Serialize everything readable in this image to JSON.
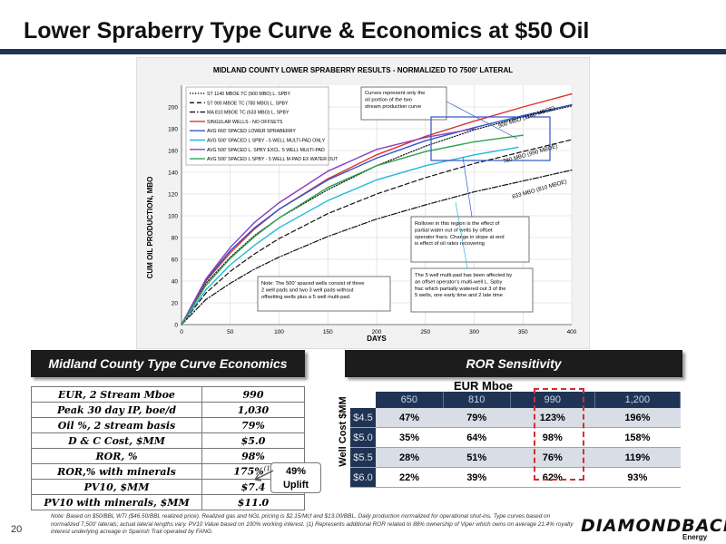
{
  "slide": {
    "title": "Lower Spraberry Type Curve & Economics at $50 Oil",
    "page_number": "20",
    "footnote": "Note: Based on $50/BBL WTI ($46.50/BBL realized price). Realized gas and NGL pricing is $2.15/Mcf and $13.00/BBL. Daily production normalized for operational shut-ins. Type curves based on normalized 7,500' laterals; actual lateral lengths vary. PV10 Value based on 100% working interest. (1) Represents additional ROR related to 88% ownership of Viper which owns on average 21.4% royalty interest underlying acreage in Spanish Trail operated by FANG.",
    "logo_text": "DIAMONDBACK",
    "logo_sub": "Energy"
  },
  "chart_data": {
    "type": "line",
    "title": "MIDLAND COUNTY LOWER SPRABERRY RESULTS - NORMALIZED TO 7500' LATERAL",
    "xlabel": "DAYS",
    "ylabel": "CUM OIL PRODUCTION, MBO",
    "xlim": [
      0,
      400
    ],
    "ylim": [
      0,
      220
    ],
    "x_ticks": [
      0,
      50,
      100,
      150,
      200,
      250,
      300,
      350,
      400
    ],
    "y_ticks": [
      0,
      20,
      40,
      60,
      80,
      100,
      120,
      140,
      160,
      180,
      200
    ],
    "grid": true,
    "legend_position": "top-left",
    "series": [
      {
        "name": "ST 1140 MBOE TC (900 MBO) L. SPBY",
        "color": "#111111",
        "style": "dotted",
        "x": [
          0,
          25,
          50,
          75,
          100,
          150,
          200,
          250,
          300,
          350,
          400
        ],
        "y": [
          0,
          38,
          62,
          82,
          98,
          124,
          146,
          164,
          179,
          191,
          201
        ]
      },
      {
        "name": "ST 990 MBOE TC (780 MBO) L. SPBY",
        "color": "#111111",
        "style": "dashed",
        "x": [
          0,
          25,
          50,
          75,
          100,
          150,
          200,
          250,
          300,
          350,
          400
        ],
        "y": [
          0,
          29,
          49,
          65,
          79,
          102,
          120,
          135,
          148,
          159,
          170
        ]
      },
      {
        "name": "MA 810 MBOE TC (633 MBO) L. SPBY",
        "color": "#111111",
        "style": "dashdot",
        "x": [
          0,
          25,
          50,
          75,
          100,
          150,
          200,
          250,
          300,
          350,
          400
        ],
        "y": [
          0,
          23,
          38,
          51,
          62,
          81,
          97,
          110,
          122,
          132,
          142
        ]
      },
      {
        "name": "SINGULAR WELLS - NO OFFSETS",
        "color": "#e0302b",
        "style": "solid",
        "x": [
          0,
          25,
          50,
          75,
          100,
          150,
          200,
          250,
          300,
          350,
          400
        ],
        "y": [
          0,
          40,
          66,
          88,
          106,
          134,
          156,
          173,
          187,
          200,
          212
        ]
      },
      {
        "name": "AVG 660' SPACED LOWER SPRABERRY",
        "color": "#2f55c7",
        "style": "solid",
        "x": [
          0,
          25,
          50,
          75,
          100,
          150,
          200,
          250,
          300,
          350,
          400
        ],
        "y": [
          0,
          41,
          68,
          89,
          106,
          133,
          153,
          169,
          181,
          192,
          202
        ]
      },
      {
        "name": "AVG 500' SPACED L SPBY - 5 WELL MULTI-PAD ONLY",
        "color": "#22b8d8",
        "style": "solid",
        "x": [
          0,
          25,
          50,
          75,
          100,
          150,
          200,
          250,
          300,
          345
        ],
        "y": [
          0,
          32,
          55,
          73,
          89,
          114,
          133,
          146,
          156,
          163
        ]
      },
      {
        "name": "AVG 500' SPACED L. SPBY EXCL. 5 WELL MULTI-PAD",
        "color": "#8a3fc2",
        "style": "solid",
        "x": [
          0,
          25,
          50,
          75,
          100,
          150,
          200,
          250,
          300
        ],
        "y": [
          0,
          42,
          71,
          94,
          112,
          141,
          161,
          172,
          180
        ]
      },
      {
        "name": "AVG 500' SPACED L SPBY - 5 WELL M-PAD EX WATER OUT",
        "color": "#2ea24f",
        "style": "solid",
        "x": [
          0,
          25,
          50,
          75,
          100,
          150,
          200,
          250,
          300,
          350
        ],
        "y": [
          0,
          36,
          61,
          81,
          98,
          126,
          146,
          159,
          168,
          174
        ]
      }
    ],
    "annotations": {
      "curves_note": "Curves represent only the oil portion of the two stream production curve",
      "rollover_note": "Rollover in this region is the effect of partial water out of wells by offset operator fracs. Change in slope at end is effect of oil rates recovering",
      "spacing_note": "Note: The 500' spaced wells consist of three 2 well pads and two 3 well pads without offsetting wells plus a 5 well multi-pad.",
      "multipad_note": "The 5 well multi-pad has been affected by an offset operator's multi-well L. Spby frac which partially watered out 3 of the 5 wells, one early time and 2 late time",
      "label_900": "900 MBO (1140 MBOE)",
      "label_780": "780 MBO (990 MBOE)",
      "label_633": "633 MBO (810 MBOE)"
    }
  },
  "economics": {
    "title": "Midland County Type Curve Economics",
    "rows": [
      {
        "label": "EUR, 2 Stream Mboe",
        "value": "990"
      },
      {
        "label": "Peak 30 day IP, boe/d",
        "value": "1,030"
      },
      {
        "label": "Oil %, 2 stream basis",
        "value": "79%"
      },
      {
        "label": "D & C Cost, $MM",
        "value": "$5.0"
      },
      {
        "label": "ROR, %",
        "value": "98%"
      },
      {
        "label": "ROR,% with minerals",
        "value": "175%",
        "superscript": "(1)"
      },
      {
        "label": "PV10, $MM",
        "value": "$7.4"
      },
      {
        "label": "PV10 with minerals, $MM",
        "value": "$11.0"
      }
    ],
    "callout_line1": "49%",
    "callout_line2": "Uplift"
  },
  "ror_sensitivity": {
    "title": "ROR Sensitivity",
    "col_axis_label": "EUR Mboe",
    "row_axis_label": "Well Cost $MM",
    "columns": [
      "650",
      "810",
      "990",
      "1,200"
    ],
    "rows": [
      {
        "cost": "$4.5",
        "values": [
          "47%",
          "79%",
          "123%",
          "196%"
        ]
      },
      {
        "cost": "$5.0",
        "values": [
          "35%",
          "64%",
          "98%",
          "158%"
        ]
      },
      {
        "cost": "$5.5",
        "values": [
          "28%",
          "51%",
          "76%",
          "119%"
        ]
      },
      {
        "cost": "$6.0",
        "values": [
          "22%",
          "39%",
          "62%",
          "93%"
        ]
      }
    ],
    "highlight_color": "#d32f2f"
  }
}
